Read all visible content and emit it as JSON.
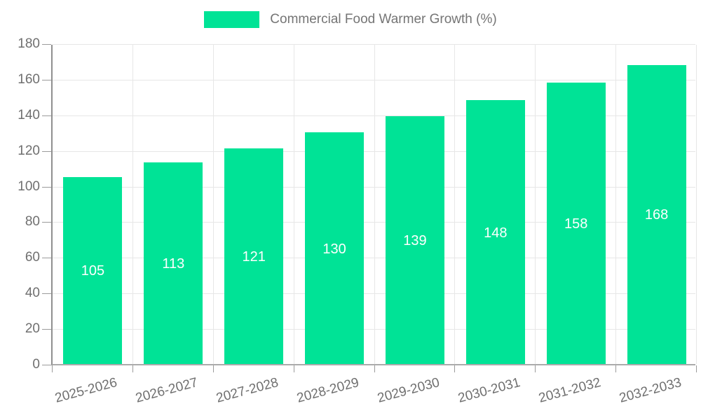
{
  "legend": {
    "label": "Commercial Food Warmer Growth (%)"
  },
  "chart_data": {
    "type": "bar",
    "title": "Commercial Food Warmer Growth (%)",
    "categories": [
      "2025-2026",
      "2026-2027",
      "2027-2028",
      "2028-2029",
      "2029-2030",
      "2030-2031",
      "2031-2032",
      "2032-2033"
    ],
    "values": [
      105,
      113,
      121,
      130,
      139,
      148,
      158,
      168
    ],
    "yticks": [
      0,
      20,
      40,
      60,
      80,
      100,
      120,
      140,
      160,
      180
    ],
    "ylim": [
      0,
      180
    ],
    "xlabel": "",
    "ylabel": "",
    "grid": true,
    "legend_position": "top",
    "colors": {
      "bar": "#00e396",
      "bar_value_label": "#ffffff",
      "axis_text": "#6f6f6f",
      "legend_text": "#757575",
      "gridline": "#e7e7e7",
      "axis_line": "#9b9b9b"
    }
  }
}
